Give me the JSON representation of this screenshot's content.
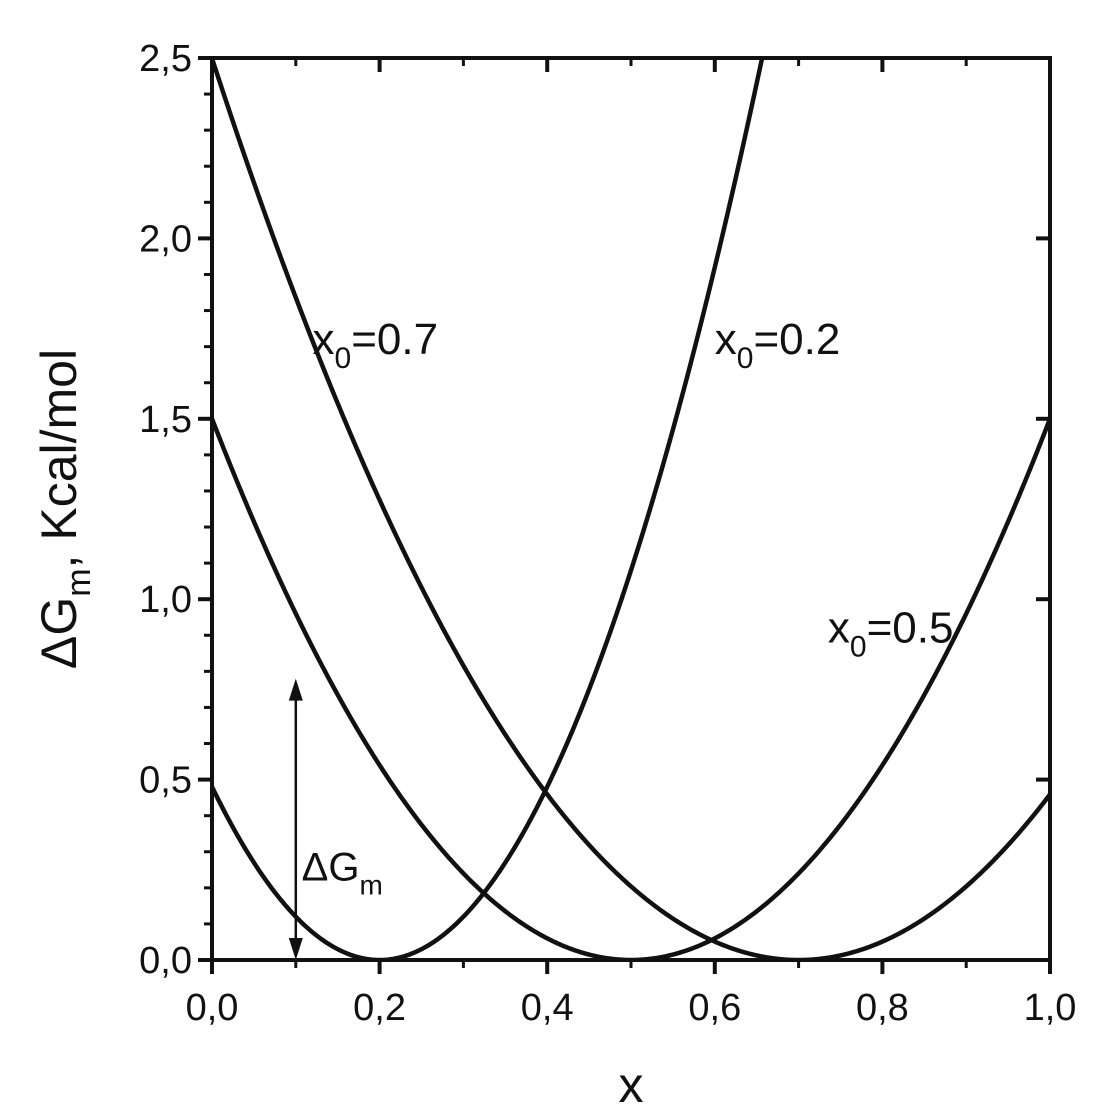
{
  "chart_data": {
    "type": "line",
    "title": "",
    "xlabel": "x",
    "ylabel": {
      "main": "ΔG",
      "sub": "m",
      "rest": ", Kcal/mol"
    },
    "xlim": [
      0.0,
      1.0
    ],
    "ylim": [
      0.0,
      2.5
    ],
    "x_ticks": [
      {
        "value": 0.0,
        "label": "0,0"
      },
      {
        "value": 0.2,
        "label": "0,2"
      },
      {
        "value": 0.4,
        "label": "0,4"
      },
      {
        "value": 0.6,
        "label": "0,6"
      },
      {
        "value": 0.8,
        "label": "0,8"
      },
      {
        "value": 1.0,
        "label": "1,0"
      }
    ],
    "y_ticks": [
      {
        "value": 0.0,
        "label": "0,0"
      },
      {
        "value": 0.5,
        "label": "0,5"
      },
      {
        "value": 1.0,
        "label": "1,0"
      },
      {
        "value": 1.5,
        "label": "1,5"
      },
      {
        "value": 2.0,
        "label": "2,0"
      },
      {
        "value": 2.5,
        "label": "2,5"
      }
    ],
    "grid": false,
    "legend": "none",
    "series": [
      {
        "minimum_x": 0.2,
        "coefficient": 12.0
      },
      {
        "minimum_x": 0.5,
        "coefficient": 6.0
      },
      {
        "minimum_x": 0.7,
        "coefficient": 5.1
      }
    ],
    "labels": [
      {
        "main": "x",
        "sub": "0",
        "rest": "=0.7",
        "x": 0.12,
        "y": 1.68
      },
      {
        "main": "x",
        "sub": "0",
        "rest": "=0.2",
        "x": 0.6,
        "y": 1.68
      },
      {
        "main": "x",
        "sub": "0",
        "rest": "=0.5",
        "x": 0.735,
        "y": 0.88
      }
    ],
    "arrow_annotation": {
      "x": 0.1,
      "y_from": 0.0,
      "y_to": 0.78,
      "label_main": "ΔG",
      "label_sub": "m",
      "label_x": 0.107,
      "label_y": 0.22
    }
  }
}
